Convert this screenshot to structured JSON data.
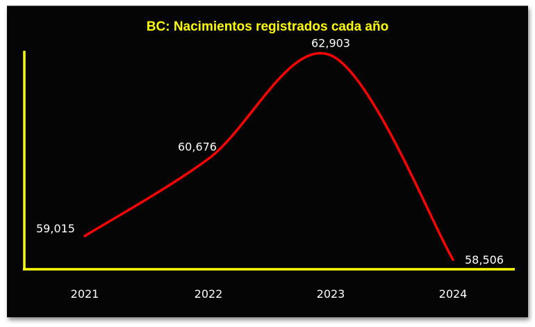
{
  "chart_data": {
    "type": "line",
    "title": "BC: Nacimientos registrados cada año",
    "categories": [
      "2021",
      "2022",
      "2023",
      "2024"
    ],
    "values": [
      59015,
      60676,
      62903,
      58506
    ],
    "data_labels": [
      "59,015",
      "60,676",
      "62,903",
      "58,506"
    ],
    "xlabel": "",
    "ylabel": "",
    "ylim": [
      58300,
      63000
    ],
    "smooth": true,
    "grid": false,
    "colors": {
      "line": "#ff0000",
      "axes": "#ffff00",
      "title": "#ffff00",
      "background": "#050505",
      "text": "#ffffff"
    }
  }
}
